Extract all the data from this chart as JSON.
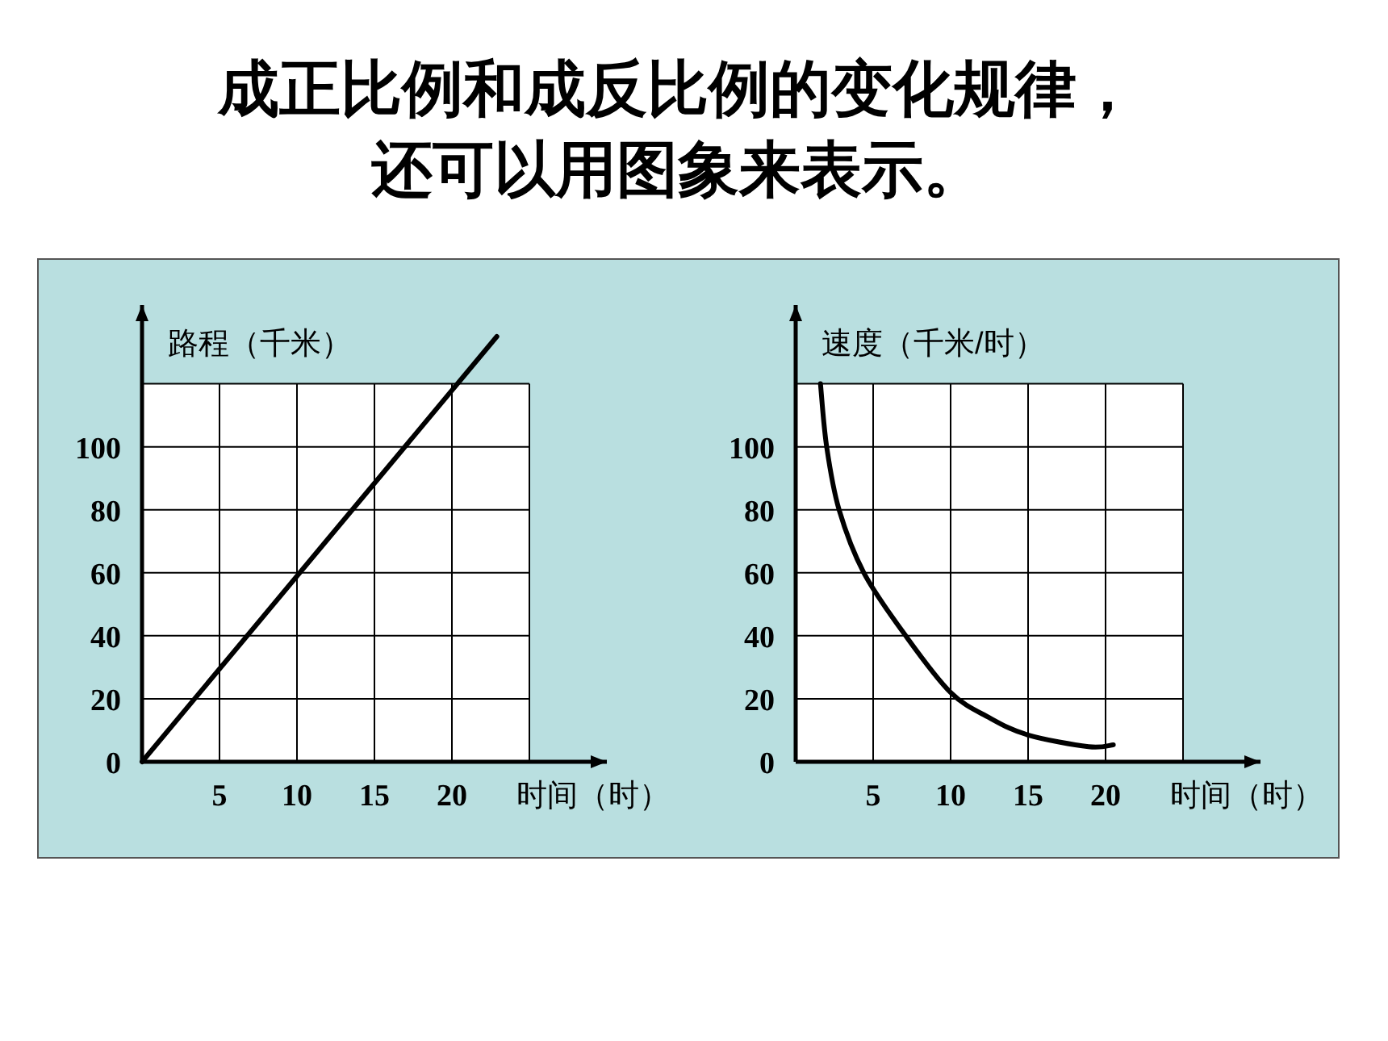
{
  "chart_data": [
    {
      "type": "line",
      "title": "成正比例和成反比例的变化规律，还可以用图象来表示。",
      "xlabel": "时间（时）",
      "ylabel": "路程（千米）",
      "series": [
        {
          "color": "#000000",
          "x": [
            0,
            22.9
          ],
          "values": [
            0,
            135
          ]
        }
      ],
      "bands": [
        {
          "axis": "y",
          "from": 0,
          "to": 120,
          "color": "#ffffff"
        }
      ],
      "xlim": [
        0,
        30
      ],
      "ylim": [
        0,
        145
      ],
      "xticks": [
        5,
        10,
        15,
        20,
        {
          "value": 25,
          "label": null
        }
      ],
      "yticks": [
        0,
        20,
        40,
        60,
        80,
        100,
        {
          "value": 120,
          "label": null
        }
      ],
      "grid": true,
      "marker": "none",
      "line_style": "solid"
    },
    {
      "type": "line",
      "xlabel": "时间（时）",
      "ylabel": "速度（千米/时）",
      "series": [
        {
          "color": "#000000",
          "x": [
            1.6,
            2,
            2.8,
            4.4,
            7.1,
            10,
            12.5,
            15,
            18.9,
            20.5
          ],
          "values": [
            120,
            100,
            80,
            60,
            40,
            22,
            14,
            8.5,
            4.8,
            5.4
          ]
        }
      ],
      "bands": [
        {
          "axis": "y",
          "from": 0,
          "to": 120,
          "color": "#ffffff"
        }
      ],
      "xlim": [
        0,
        30
      ],
      "ylim": [
        0,
        145
      ],
      "xticks": [
        5,
        10,
        15,
        20,
        {
          "value": 25,
          "label": null
        }
      ],
      "yticks": [
        0,
        20,
        40,
        60,
        80,
        100,
        {
          "value": 120,
          "label": null
        }
      ],
      "grid": true,
      "marker": "none",
      "line_style": "solid"
    }
  ]
}
